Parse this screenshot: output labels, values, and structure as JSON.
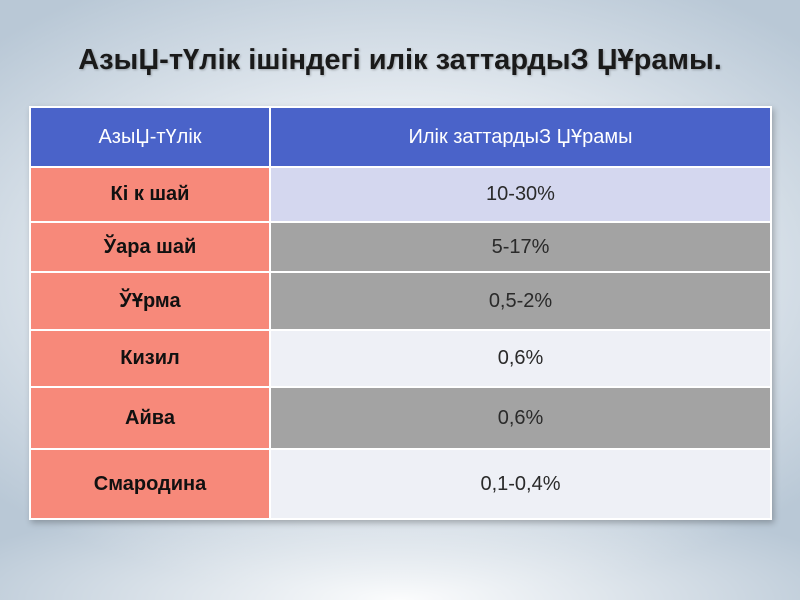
{
  "title": "АзыЏ-тҮлік ішіндегі илік заттардыЗ ЏҰрамы.",
  "table": {
    "headers": [
      "АзыЏ-тҮлік",
      "Илік заттардыЗ ЏҰрамы"
    ],
    "rows": [
      {
        "name": "Кі к шай",
        "value": "10-30%"
      },
      {
        "name": "Ўара шай",
        "value": "5-17%"
      },
      {
        "name": "ЎҰрма",
        "value": "0,5-2%"
      },
      {
        "name": "Кизил",
        "value": "0,6%"
      },
      {
        "name": "Айва",
        "value": "0,6%"
      },
      {
        "name": "Смародина",
        "value": "0,1-0,4%"
      }
    ]
  },
  "colors": {
    "header_bg": "#4a63c9",
    "name_cell_bg": "#f7897a",
    "value_light": "#d4d7ef",
    "value_gray": "#a3a3a3",
    "value_white": "#eef0f6"
  }
}
